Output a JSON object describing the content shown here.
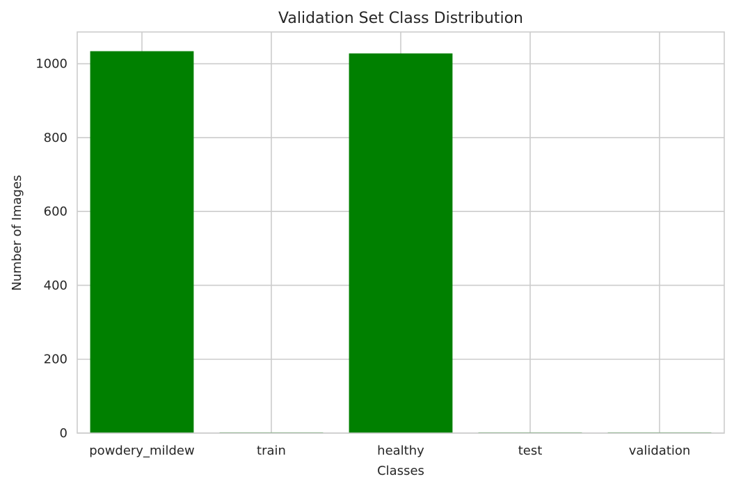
{
  "chart_data": {
    "type": "bar",
    "title": "Validation Set Class Distribution",
    "xlabel": "Classes",
    "ylabel": "Number of Images",
    "categories": [
      "powdery_mildew",
      "train",
      "healthy",
      "test",
      "validation"
    ],
    "values": [
      1034,
      2,
      1028,
      2,
      2
    ],
    "ylim": [
      0,
      1086
    ],
    "yticks": [
      0,
      200,
      400,
      600,
      800,
      1000
    ],
    "bar_color": "#008000",
    "grid": true,
    "legend": false
  }
}
